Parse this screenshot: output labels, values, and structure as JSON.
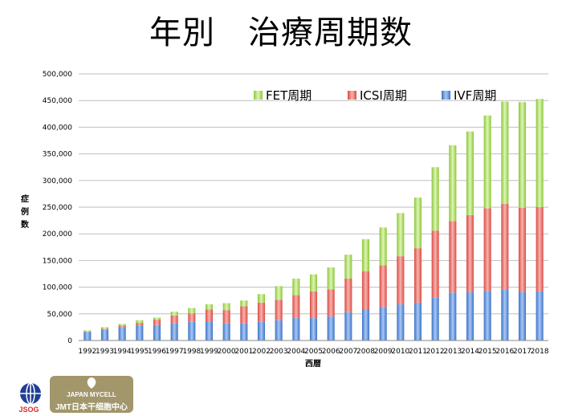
{
  "title": "年別　治療周期数",
  "chart_data": {
    "type": "bar",
    "stacked": true,
    "title": "年別　治療周期数",
    "xlabel": "西暦",
    "ylabel": "症例数",
    "ylim": [
      0,
      500000
    ],
    "yticks": [
      "0",
      "50,000",
      "100,000",
      "150,000",
      "200,000",
      "250,000",
      "300,000",
      "350,000",
      "400,000",
      "450,000",
      "500,000"
    ],
    "grid": true,
    "legend_position": "top",
    "categories": [
      "1992",
      "1993",
      "1994",
      "1995",
      "1996",
      "1997",
      "1998",
      "1999",
      "2000",
      "2001",
      "2002",
      "2003",
      "2004",
      "2005",
      "2006",
      "2007",
      "2008",
      "2009",
      "2010",
      "2011",
      "2012",
      "2013",
      "2014",
      "2015",
      "2016",
      "2017",
      "2018"
    ],
    "series": [
      {
        "name": "IVF周期",
        "color": "#5b8fd8",
        "values": [
          16000,
          20000,
          25000,
          28000,
          29000,
          32000,
          35000,
          36000,
          32000,
          32000,
          35000,
          38000,
          42000,
          42000,
          45000,
          53000,
          58000,
          63000,
          68000,
          71000,
          81000,
          90000,
          91000,
          93000,
          95000,
          91000,
          92000
        ]
      },
      {
        "name": "ICSI周期",
        "color": "#e8645f",
        "values": [
          1000,
          2000,
          3000,
          5000,
          10000,
          15000,
          16000,
          22000,
          25000,
          32000,
          36000,
          38000,
          43000,
          50000,
          51000,
          63000,
          72000,
          78000,
          90000,
          102000,
          125000,
          134000,
          144000,
          155000,
          161000,
          158000,
          158000
        ]
      },
      {
        "name": "FET周期",
        "color": "#9cd34a",
        "values": [
          2000,
          3000,
          3000,
          5000,
          4000,
          7000,
          10000,
          10000,
          13000,
          11000,
          16000,
          26000,
          31000,
          32000,
          41000,
          45000,
          60000,
          71000,
          81000,
          95000,
          119000,
          142000,
          157000,
          174000,
          192000,
          198000,
          203000
        ]
      }
    ]
  },
  "logos": {
    "jsog_text": "JSOG",
    "jmt_line1": "JAPAN MYCELL",
    "jmt_line2": "JMT日本干细胞中心"
  }
}
